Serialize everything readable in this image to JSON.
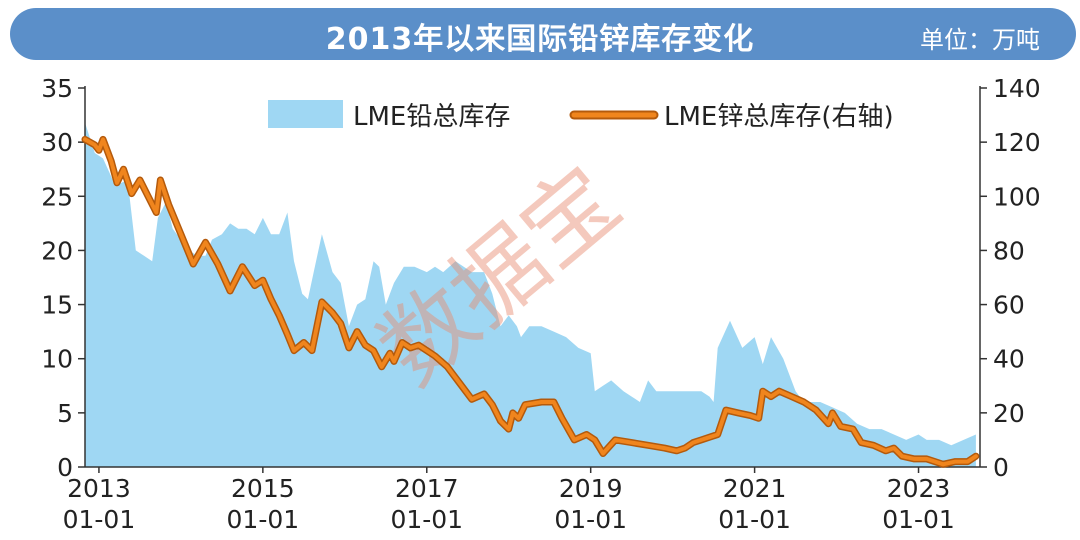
{
  "header": {
    "title": "2013年以来国际铅锌库存变化",
    "unit": "单位：万吨"
  },
  "watermark": "数据宝",
  "chart_data": {
    "type": "area",
    "title": "2013年以来国际铅锌库存变化",
    "x_range": [
      2012.83,
      2023.75
    ],
    "left_axis": {
      "range": [
        0,
        35
      ],
      "ticks": [
        "0",
        "5",
        "10",
        "15",
        "20",
        "25",
        "30",
        "35"
      ]
    },
    "right_axis": {
      "range": [
        0,
        140
      ],
      "ticks": [
        "0",
        "20",
        "40",
        "60",
        "80",
        "100",
        "120",
        "140"
      ]
    },
    "x_ticks": [
      {
        "year": "2013",
        "date": "01-01",
        "x": 2013.0
      },
      {
        "year": "2015",
        "date": "01-01",
        "x": 2015.0
      },
      {
        "year": "2017",
        "date": "01-01",
        "x": 2017.0
      },
      {
        "year": "2019",
        "date": "01-01",
        "x": 2019.0
      },
      {
        "year": "2021",
        "date": "01-01",
        "x": 2021.0
      },
      {
        "year": "2023",
        "date": "01-01",
        "x": 2023.0
      }
    ],
    "legend": {
      "position": "top-center"
    },
    "series": [
      {
        "name": "LME铅总库存",
        "type": "area",
        "axis": "left",
        "color": "#9fd7f3",
        "points": [
          [
            2012.83,
            31.8
          ],
          [
            2012.95,
            29
          ],
          [
            2013.05,
            28.5
          ],
          [
            2013.2,
            26
          ],
          [
            2013.35,
            26.5
          ],
          [
            2013.45,
            20
          ],
          [
            2013.55,
            19.5
          ],
          [
            2013.65,
            19
          ],
          [
            2013.72,
            23
          ],
          [
            2013.82,
            24.5
          ],
          [
            2013.9,
            22
          ],
          [
            2014.0,
            21
          ],
          [
            2014.1,
            20
          ],
          [
            2014.2,
            19.5
          ],
          [
            2014.3,
            19.5
          ],
          [
            2014.38,
            21
          ],
          [
            2014.5,
            21.5
          ],
          [
            2014.6,
            22.5
          ],
          [
            2014.7,
            22
          ],
          [
            2014.8,
            22
          ],
          [
            2014.9,
            21.5
          ],
          [
            2015.0,
            23
          ],
          [
            2015.1,
            21.5
          ],
          [
            2015.2,
            21.5
          ],
          [
            2015.3,
            23.5
          ],
          [
            2015.38,
            19
          ],
          [
            2015.48,
            16
          ],
          [
            2015.55,
            15.5
          ],
          [
            2015.62,
            18
          ],
          [
            2015.72,
            21.5
          ],
          [
            2015.85,
            18
          ],
          [
            2015.95,
            17
          ],
          [
            2016.0,
            15
          ],
          [
            2016.05,
            13
          ],
          [
            2016.15,
            15
          ],
          [
            2016.25,
            15.5
          ],
          [
            2016.35,
            19
          ],
          [
            2016.42,
            18.5
          ],
          [
            2016.5,
            15
          ],
          [
            2016.6,
            17
          ],
          [
            2016.72,
            18.5
          ],
          [
            2016.85,
            18.5
          ],
          [
            2017.0,
            18
          ],
          [
            2017.1,
            18.5
          ],
          [
            2017.2,
            18
          ],
          [
            2017.35,
            19
          ],
          [
            2017.45,
            18.5
          ],
          [
            2017.55,
            18
          ],
          [
            2017.7,
            18
          ],
          [
            2017.8,
            16
          ],
          [
            2017.9,
            13
          ],
          [
            2018.0,
            14
          ],
          [
            2018.1,
            13
          ],
          [
            2018.15,
            12
          ],
          [
            2018.25,
            13
          ],
          [
            2018.4,
            13
          ],
          [
            2018.55,
            12.5
          ],
          [
            2018.7,
            12
          ],
          [
            2018.85,
            11
          ],
          [
            2019.0,
            10.5
          ],
          [
            2019.05,
            7
          ],
          [
            2019.15,
            7.5
          ],
          [
            2019.25,
            8
          ],
          [
            2019.4,
            7
          ],
          [
            2019.5,
            6.5
          ],
          [
            2019.6,
            6
          ],
          [
            2019.7,
            8
          ],
          [
            2019.8,
            7
          ],
          [
            2019.95,
            7
          ],
          [
            2020.1,
            7
          ],
          [
            2020.25,
            7
          ],
          [
            2020.35,
            7
          ],
          [
            2020.45,
            6.5
          ],
          [
            2020.5,
            6
          ],
          [
            2020.55,
            11
          ],
          [
            2020.7,
            13.5
          ],
          [
            2020.85,
            11
          ],
          [
            2021.0,
            12
          ],
          [
            2021.1,
            9.5
          ],
          [
            2021.2,
            12
          ],
          [
            2021.35,
            10
          ],
          [
            2021.45,
            8
          ],
          [
            2021.5,
            7
          ],
          [
            2021.6,
            6
          ],
          [
            2021.8,
            6
          ],
          [
            2021.95,
            5.5
          ],
          [
            2022.1,
            5
          ],
          [
            2022.25,
            4
          ],
          [
            2022.4,
            3.5
          ],
          [
            2022.55,
            3.5
          ],
          [
            2022.7,
            3
          ],
          [
            2022.85,
            2.5
          ],
          [
            2023.0,
            3
          ],
          [
            2023.1,
            2.5
          ],
          [
            2023.25,
            2.5
          ],
          [
            2023.4,
            2
          ],
          [
            2023.55,
            2.5
          ],
          [
            2023.7,
            3
          ]
        ]
      },
      {
        "name": "LME锌总库存(右轴)",
        "type": "line",
        "axis": "right",
        "color": "#f0851d",
        "points": [
          [
            2012.83,
            121
          ],
          [
            2012.95,
            119
          ],
          [
            2013.0,
            117
          ],
          [
            2013.05,
            121
          ],
          [
            2013.15,
            113
          ],
          [
            2013.22,
            105
          ],
          [
            2013.3,
            110
          ],
          [
            2013.4,
            101
          ],
          [
            2013.5,
            106
          ],
          [
            2013.6,
            100
          ],
          [
            2013.7,
            94
          ],
          [
            2013.75,
            106
          ],
          [
            2013.85,
            97
          ],
          [
            2014.0,
            86
          ],
          [
            2014.15,
            75
          ],
          [
            2014.3,
            83
          ],
          [
            2014.45,
            75
          ],
          [
            2014.6,
            65
          ],
          [
            2014.75,
            74
          ],
          [
            2014.9,
            67
          ],
          [
            2015.0,
            69
          ],
          [
            2015.1,
            62
          ],
          [
            2015.2,
            56
          ],
          [
            2015.3,
            49
          ],
          [
            2015.38,
            43
          ],
          [
            2015.5,
            46
          ],
          [
            2015.6,
            43
          ],
          [
            2015.72,
            61
          ],
          [
            2015.85,
            57
          ],
          [
            2015.95,
            53
          ],
          [
            2016.05,
            44
          ],
          [
            2016.15,
            50
          ],
          [
            2016.25,
            45
          ],
          [
            2016.35,
            43
          ],
          [
            2016.45,
            37
          ],
          [
            2016.55,
            42
          ],
          [
            2016.6,
            39
          ],
          [
            2016.7,
            46
          ],
          [
            2016.8,
            44
          ],
          [
            2016.9,
            45
          ],
          [
            2017.0,
            43
          ],
          [
            2017.1,
            41
          ],
          [
            2017.25,
            37
          ],
          [
            2017.4,
            31
          ],
          [
            2017.55,
            25
          ],
          [
            2017.7,
            27
          ],
          [
            2017.8,
            23
          ],
          [
            2017.9,
            17
          ],
          [
            2018.0,
            14
          ],
          [
            2018.05,
            20
          ],
          [
            2018.12,
            18
          ],
          [
            2018.2,
            23
          ],
          [
            2018.4,
            24
          ],
          [
            2018.55,
            24
          ],
          [
            2018.65,
            18
          ],
          [
            2018.8,
            10
          ],
          [
            2018.95,
            12
          ],
          [
            2019.05,
            10
          ],
          [
            2019.15,
            5
          ],
          [
            2019.3,
            10
          ],
          [
            2019.5,
            9
          ],
          [
            2019.7,
            8
          ],
          [
            2019.9,
            7
          ],
          [
            2020.05,
            6
          ],
          [
            2020.15,
            7
          ],
          [
            2020.25,
            9
          ],
          [
            2020.35,
            10
          ],
          [
            2020.45,
            11
          ],
          [
            2020.55,
            12
          ],
          [
            2020.65,
            21
          ],
          [
            2020.8,
            20
          ],
          [
            2020.95,
            19
          ],
          [
            2021.05,
            18
          ],
          [
            2021.1,
            28
          ],
          [
            2021.2,
            26
          ],
          [
            2021.3,
            28
          ],
          [
            2021.45,
            26
          ],
          [
            2021.6,
            24
          ],
          [
            2021.75,
            21
          ],
          [
            2021.9,
            16
          ],
          [
            2021.95,
            20
          ],
          [
            2022.05,
            15
          ],
          [
            2022.2,
            14
          ],
          [
            2022.3,
            9
          ],
          [
            2022.45,
            8
          ],
          [
            2022.6,
            6
          ],
          [
            2022.7,
            7
          ],
          [
            2022.8,
            4
          ],
          [
            2022.95,
            3
          ],
          [
            2023.1,
            3
          ],
          [
            2023.3,
            1
          ],
          [
            2023.45,
            2
          ],
          [
            2023.6,
            2
          ],
          [
            2023.7,
            4
          ]
        ]
      }
    ]
  }
}
